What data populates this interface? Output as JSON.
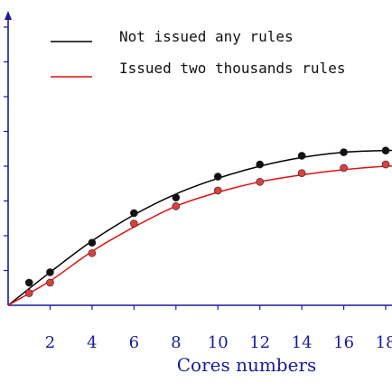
{
  "chart_data": {
    "type": "line",
    "xlabel": "Cores numbers",
    "ylabel": "",
    "xlim": [
      0,
      18.3
    ],
    "ylim": [
      0,
      8.5
    ],
    "xticks": [
      2,
      4,
      6,
      8,
      10,
      12,
      14,
      16,
      18
    ],
    "xtick_labels": [
      "2",
      "4",
      "6",
      "8",
      "10",
      "12",
      "14",
      "16",
      "18"
    ],
    "yticks": [
      1,
      2,
      3,
      4,
      5,
      6,
      7,
      8
    ],
    "ytick_labels": [],
    "grid": false,
    "legend_position": "top-left",
    "series": [
      {
        "name": "Not issued any rules",
        "color": "#000000",
        "marker_color": "#111111",
        "points": [
          [
            1,
            0.65
          ],
          [
            2,
            0.95
          ],
          [
            4,
            1.8
          ],
          [
            6,
            2.65
          ],
          [
            8,
            3.1
          ],
          [
            10,
            3.7
          ],
          [
            12,
            4.05
          ],
          [
            14,
            4.3
          ],
          [
            16,
            4.4
          ],
          [
            18,
            4.45
          ]
        ],
        "curve": [
          [
            0,
            0
          ],
          [
            2,
            0.95
          ],
          [
            4,
            1.85
          ],
          [
            6,
            2.6
          ],
          [
            8,
            3.2
          ],
          [
            10,
            3.65
          ],
          [
            12,
            4.0
          ],
          [
            14,
            4.25
          ],
          [
            16,
            4.4
          ],
          [
            18,
            4.45
          ],
          [
            18.3,
            4.45
          ]
        ]
      },
      {
        "name": "Issued two thousands rules",
        "color": "#e01010",
        "marker_color": "#d94040",
        "points": [
          [
            1,
            0.35
          ],
          [
            2,
            0.65
          ],
          [
            4,
            1.5
          ],
          [
            6,
            2.35
          ],
          [
            8,
            2.85
          ],
          [
            10,
            3.3
          ],
          [
            12,
            3.55
          ],
          [
            14,
            3.8
          ],
          [
            16,
            3.95
          ],
          [
            18,
            4.05
          ]
        ],
        "curve": [
          [
            0,
            0
          ],
          [
            2,
            0.7
          ],
          [
            4,
            1.55
          ],
          [
            6,
            2.25
          ],
          [
            8,
            2.85
          ],
          [
            10,
            3.25
          ],
          [
            12,
            3.55
          ],
          [
            14,
            3.75
          ],
          [
            16,
            3.9
          ],
          [
            18,
            4.0
          ],
          [
            18.3,
            4.0
          ]
        ]
      }
    ]
  }
}
